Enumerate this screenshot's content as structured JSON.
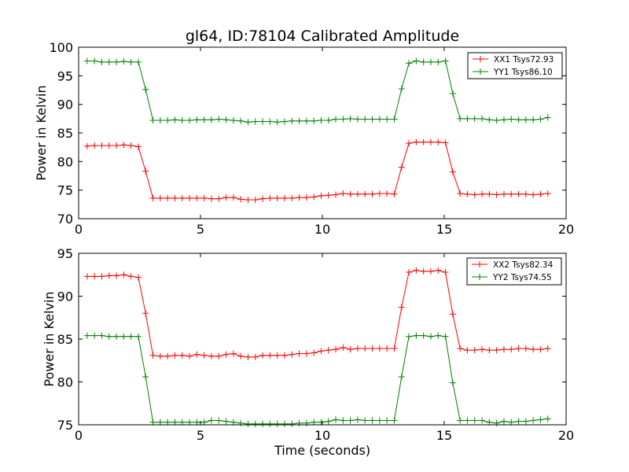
{
  "chart_data": [
    {
      "type": "line",
      "title": "gl64, ID:78104 Calibrated Amplitude",
      "xlabel": "",
      "ylabel": "Power in Kelvin",
      "xlim": [
        0,
        20
      ],
      "ylim": [
        70,
        100
      ],
      "xticks": [
        0,
        5,
        10,
        15,
        20
      ],
      "yticks": [
        70,
        75,
        80,
        85,
        90,
        95,
        100
      ],
      "legend_position": "top-right",
      "x": [
        0.35,
        0.65,
        0.95,
        1.25,
        1.55,
        1.85,
        2.15,
        2.45,
        2.75,
        3.05,
        3.35,
        3.65,
        3.95,
        4.25,
        4.55,
        4.85,
        5.15,
        5.45,
        5.75,
        6.05,
        6.35,
        6.65,
        6.95,
        7.25,
        7.55,
        7.85,
        8.15,
        8.45,
        8.75,
        9.05,
        9.35,
        9.65,
        9.95,
        10.25,
        10.55,
        10.85,
        11.15,
        11.45,
        11.75,
        12.05,
        12.35,
        12.65,
        12.95,
        13.25,
        13.55,
        13.85,
        14.15,
        14.45,
        14.75,
        15.05,
        15.35,
        15.65,
        15.95,
        16.25,
        16.55,
        16.85,
        17.15,
        17.45,
        17.75,
        18.05,
        18.35,
        18.65,
        18.95,
        19.25
      ],
      "series": [
        {
          "name": "XX1 Tsys72.93",
          "color": "#ff0000",
          "values": [
            82.7,
            82.8,
            82.8,
            82.8,
            82.8,
            82.9,
            82.8,
            82.6,
            78.3,
            73.6,
            73.6,
            73.6,
            73.6,
            73.6,
            73.6,
            73.6,
            73.6,
            73.5,
            73.5,
            73.7,
            73.7,
            73.4,
            73.3,
            73.3,
            73.5,
            73.6,
            73.6,
            73.6,
            73.6,
            73.7,
            73.7,
            73.8,
            74.0,
            74.1,
            74.2,
            74.4,
            74.3,
            74.3,
            74.3,
            74.3,
            74.4,
            74.4,
            74.3,
            79.0,
            83.2,
            83.4,
            83.4,
            83.4,
            83.4,
            83.3,
            78.2,
            74.4,
            74.3,
            74.2,
            74.3,
            74.3,
            74.2,
            74.3,
            74.3,
            74.3,
            74.3,
            74.2,
            74.3,
            74.4
          ]
        },
        {
          "name": "YY1 Tsys86.10",
          "color": "#008000",
          "values": [
            97.6,
            97.6,
            97.4,
            97.4,
            97.4,
            97.5,
            97.4,
            97.4,
            92.6,
            87.2,
            87.2,
            87.2,
            87.3,
            87.2,
            87.2,
            87.3,
            87.3,
            87.3,
            87.4,
            87.3,
            87.2,
            87.1,
            86.9,
            87.0,
            87.0,
            87.0,
            86.9,
            87.0,
            87.1,
            87.1,
            87.1,
            87.1,
            87.2,
            87.2,
            87.4,
            87.4,
            87.5,
            87.4,
            87.4,
            87.4,
            87.4,
            87.4,
            87.4,
            92.7,
            97.2,
            97.6,
            97.4,
            97.4,
            97.4,
            97.6,
            91.9,
            87.5,
            87.5,
            87.5,
            87.5,
            87.3,
            87.2,
            87.3,
            87.4,
            87.3,
            87.3,
            87.3,
            87.4,
            87.7
          ]
        }
      ]
    },
    {
      "type": "line",
      "title": "",
      "xlabel": "Time (seconds)",
      "ylabel": "Power in Kelvin",
      "xlim": [
        0,
        20
      ],
      "ylim": [
        75,
        95
      ],
      "xticks": [
        0,
        5,
        10,
        15,
        20
      ],
      "yticks": [
        75,
        80,
        85,
        90,
        95
      ],
      "legend_position": "top-right",
      "x": [
        0.35,
        0.65,
        0.95,
        1.25,
        1.55,
        1.85,
        2.15,
        2.45,
        2.75,
        3.05,
        3.35,
        3.65,
        3.95,
        4.25,
        4.55,
        4.85,
        5.15,
        5.45,
        5.75,
        6.05,
        6.35,
        6.65,
        6.95,
        7.25,
        7.55,
        7.85,
        8.15,
        8.45,
        8.75,
        9.05,
        9.35,
        9.65,
        9.95,
        10.25,
        10.55,
        10.85,
        11.15,
        11.45,
        11.75,
        12.05,
        12.35,
        12.65,
        12.95,
        13.25,
        13.55,
        13.85,
        14.15,
        14.45,
        14.75,
        15.05,
        15.35,
        15.65,
        15.95,
        16.25,
        16.55,
        16.85,
        17.15,
        17.45,
        17.75,
        18.05,
        18.35,
        18.65,
        18.95,
        19.25
      ],
      "series": [
        {
          "name": "XX2 Tsys82.34",
          "color": "#ff0000",
          "values": [
            92.3,
            92.3,
            92.3,
            92.4,
            92.4,
            92.5,
            92.3,
            92.2,
            88.0,
            83.1,
            83.0,
            83.0,
            83.1,
            83.1,
            83.0,
            83.2,
            83.1,
            83.0,
            83.0,
            83.2,
            83.3,
            83.0,
            82.9,
            82.9,
            83.1,
            83.1,
            83.1,
            83.1,
            83.2,
            83.3,
            83.3,
            83.4,
            83.6,
            83.7,
            83.8,
            84.0,
            83.8,
            83.9,
            83.9,
            83.9,
            83.9,
            83.9,
            83.9,
            88.7,
            92.8,
            93.0,
            92.9,
            92.9,
            93.0,
            92.8,
            87.9,
            83.9,
            83.7,
            83.7,
            83.8,
            83.7,
            83.7,
            83.8,
            83.8,
            83.9,
            83.9,
            83.8,
            83.8,
            83.9
          ]
        },
        {
          "name": "YY2 Tsys74.55",
          "color": "#008000",
          "values": [
            85.4,
            85.4,
            85.4,
            85.3,
            85.3,
            85.3,
            85.3,
            85.3,
            80.6,
            75.3,
            75.3,
            75.3,
            75.3,
            75.3,
            75.3,
            75.3,
            75.3,
            75.5,
            75.5,
            75.4,
            75.3,
            75.2,
            75.1,
            75.1,
            75.1,
            75.1,
            75.1,
            75.1,
            75.1,
            75.2,
            75.2,
            75.3,
            75.3,
            75.4,
            75.6,
            75.5,
            75.5,
            75.6,
            75.5,
            75.5,
            75.5,
            75.5,
            75.5,
            80.6,
            85.3,
            85.4,
            85.4,
            85.3,
            85.4,
            85.3,
            79.9,
            75.5,
            75.5,
            75.5,
            75.5,
            75.3,
            75.2,
            75.4,
            75.3,
            75.4,
            75.4,
            75.5,
            75.6,
            75.7
          ]
        }
      ]
    }
  ]
}
